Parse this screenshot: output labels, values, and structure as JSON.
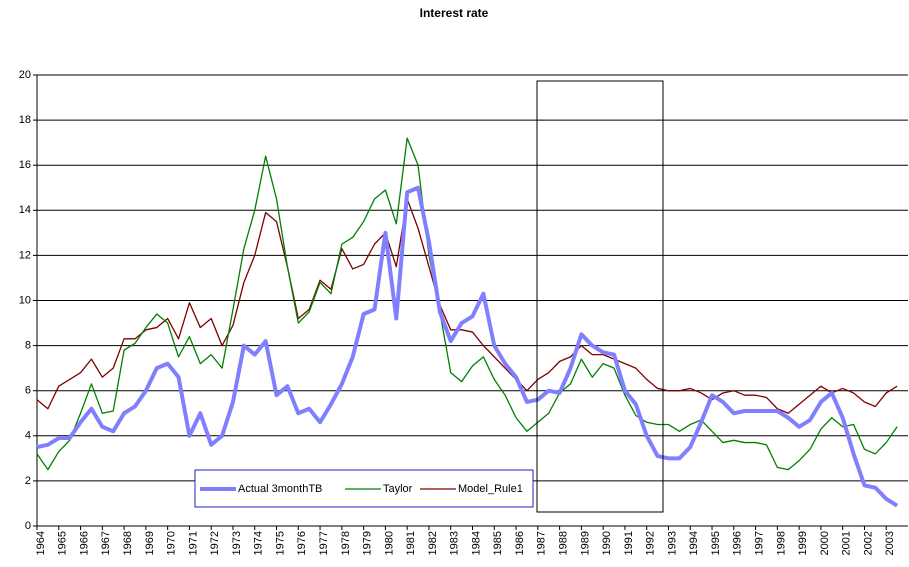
{
  "chart_data": {
    "type": "line",
    "title": "Interest rate",
    "x": [
      1964,
      1964.5,
      1965,
      1965.5,
      1966,
      1966.5,
      1967,
      1967.5,
      1968,
      1968.5,
      1969,
      1969.5,
      1970,
      1970.5,
      1971,
      1971.5,
      1972,
      1972.5,
      1973,
      1973.5,
      1974,
      1974.5,
      1975,
      1975.5,
      1976,
      1976.5,
      1977,
      1977.5,
      1978,
      1978.5,
      1979,
      1979.5,
      1980,
      1980.5,
      1981,
      1981.5,
      1982,
      1982.5,
      1983,
      1983.5,
      1984,
      1984.5,
      1985,
      1985.5,
      1986,
      1986.5,
      1987,
      1987.5,
      1988,
      1988.5,
      1989,
      1989.5,
      1990,
      1990.5,
      1991,
      1991.5,
      1992,
      1992.5,
      1993,
      1993.5,
      1994,
      1994.5,
      1995,
      1995.5,
      1996,
      1996.5,
      1997,
      1997.5,
      1998,
      1998.5,
      1999,
      1999.5,
      2000,
      2000.5,
      2001,
      2001.5,
      2002,
      2002.5,
      2003,
      2003.5
    ],
    "series": [
      {
        "name": "Actual 3monthTB",
        "color": "#8080ff",
        "values": [
          3.5,
          3.6,
          3.9,
          3.9,
          4.6,
          5.2,
          4.4,
          4.2,
          5.0,
          5.3,
          6.0,
          7.0,
          7.2,
          6.6,
          4.0,
          5.0,
          3.6,
          4.0,
          5.5,
          8.0,
          7.6,
          8.2,
          5.8,
          6.2,
          5.0,
          5.2,
          4.6,
          5.4,
          6.3,
          7.5,
          9.4,
          9.6,
          13.0,
          9.2,
          14.8,
          15.0,
          12.6,
          9.5,
          8.2,
          9.0,
          9.3,
          10.3,
          8.0,
          7.2,
          6.6,
          5.5,
          5.6,
          6.0,
          5.9,
          7.0,
          8.5,
          8.0,
          7.7,
          7.6,
          6.0,
          5.4,
          4.0,
          3.1,
          3.0,
          3.0,
          3.5,
          4.6,
          5.8,
          5.5,
          5.0,
          5.1,
          5.1,
          5.1,
          5.1,
          4.8,
          4.4,
          4.7,
          5.5,
          5.9,
          4.8,
          3.2,
          1.8,
          1.7,
          1.2,
          0.9
        ]
      },
      {
        "name": "Taylor",
        "color": "#008000",
        "values": [
          3.2,
          2.5,
          3.3,
          3.8,
          5.0,
          6.3,
          5.0,
          5.1,
          7.8,
          8.1,
          8.8,
          9.4,
          9.0,
          7.5,
          8.4,
          7.2,
          7.6,
          7.0,
          9.6,
          12.3,
          14.0,
          16.4,
          14.5,
          11.5,
          9.0,
          9.5,
          10.8,
          10.3,
          12.5,
          12.8,
          13.5,
          14.5,
          14.9,
          13.4,
          17.2,
          16.0,
          12.0,
          9.5,
          6.8,
          6.4,
          7.1,
          7.5,
          6.5,
          5.8,
          4.8,
          4.2,
          4.6,
          5.0,
          5.9,
          6.3,
          7.4,
          6.6,
          7.2,
          7.0,
          5.8,
          4.9,
          4.6,
          4.5,
          4.5,
          4.2,
          4.5,
          4.7,
          4.2,
          3.7,
          3.8,
          3.7,
          3.7,
          3.6,
          2.6,
          2.5,
          2.9,
          3.4,
          4.3,
          4.8,
          4.4,
          4.5,
          3.4,
          3.2,
          3.7,
          4.4
        ]
      },
      {
        "name": "Model_Rule1",
        "color": "#800000",
        "values": [
          5.6,
          5.2,
          6.2,
          6.5,
          6.8,
          7.4,
          6.6,
          7.0,
          8.3,
          8.3,
          8.7,
          8.8,
          9.2,
          8.3,
          9.9,
          8.8,
          9.2,
          8.0,
          8.9,
          10.8,
          12.0,
          13.9,
          13.5,
          11.5,
          9.2,
          9.6,
          10.9,
          10.5,
          12.3,
          11.4,
          11.6,
          12.5,
          13.0,
          11.5,
          14.5,
          13.2,
          11.5,
          9.8,
          8.7,
          8.7,
          8.6,
          8.0,
          7.5,
          7.0,
          6.5,
          6.0,
          6.5,
          6.8,
          7.3,
          7.5,
          8.0,
          7.6,
          7.6,
          7.4,
          7.2,
          7.0,
          6.5,
          6.1,
          6.0,
          6.0,
          6.1,
          5.9,
          5.6,
          5.9,
          6.0,
          5.8,
          5.8,
          5.7,
          5.2,
          5.0,
          5.4,
          5.8,
          6.2,
          5.9,
          6.1,
          5.9,
          5.5,
          5.3,
          5.9,
          6.2
        ]
      }
    ],
    "xlim": [
      1964,
      2004
    ],
    "xticks": [
      1964,
      1965,
      1966,
      1967,
      1968,
      1969,
      1970,
      1971,
      1972,
      1973,
      1974,
      1975,
      1976,
      1977,
      1978,
      1979,
      1980,
      1981,
      1982,
      1983,
      1984,
      1985,
      1986,
      1987,
      1988,
      1989,
      1990,
      1991,
      1992,
      1993,
      1994,
      1995,
      1996,
      1997,
      1998,
      1999,
      2000,
      2001,
      2002,
      2003
    ],
    "ylim": [
      0,
      20
    ],
    "yticks": [
      0,
      2,
      4,
      6,
      8,
      10,
      12,
      14,
      16,
      18,
      20
    ],
    "grid": true
  }
}
